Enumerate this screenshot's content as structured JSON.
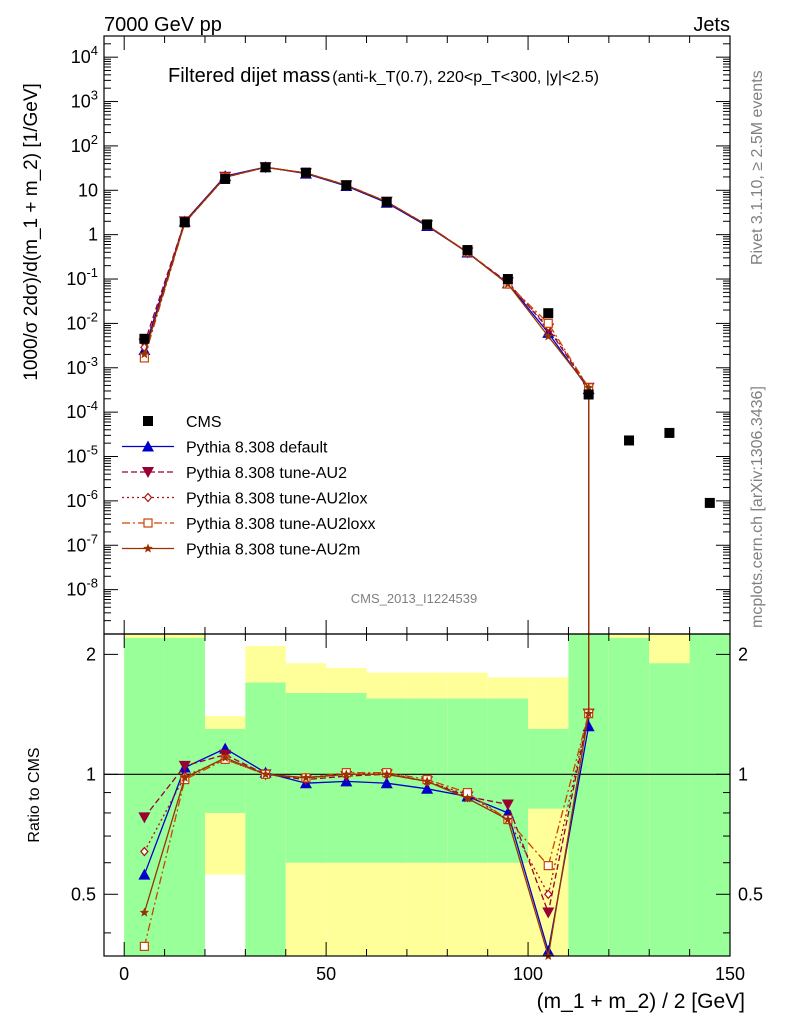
{
  "header": {
    "left": "7000 GeV pp",
    "right": "Jets"
  },
  "side_labels": {
    "rivet": "Rivet 3.1.10, ≥ 2.5M events",
    "mcplots": "mcplots.cern.ch [arXiv:1306.3436]"
  },
  "watermark": "CMS_2013_I1224539",
  "colors": {
    "cms": "#000000",
    "default": "#0000cc",
    "au2": "#990033",
    "au2lox": "#aa1111",
    "au2loxx": "#cc4400",
    "au2m": "#993300",
    "band_inner": "#99ff99",
    "band_outer": "#ffff99"
  },
  "chart_data": {
    "type": "line",
    "title": "Filtered dijet mass",
    "title_suffix": "(anti-k_T(0.7), 220<p_T<300, |y|<2.5)",
    "xlabel": "(m_1 + m_2) / 2 [GeV]",
    "ylabel": "1000/σ 2dσ)/d(m_1 + m_2) [1/GeV]",
    "ratio_ylabel": "Ratio to CMS",
    "xlim": [
      -5,
      150
    ],
    "ylim": [
      1e-09,
      30000
    ],
    "yscale": "log",
    "ratio_ylim": [
      0.35,
      2.25
    ],
    "x_ticks": [
      0,
      50,
      100,
      150
    ],
    "y_ticks": [
      "10^{-8}",
      "10^{-7}",
      "10^{-6}",
      "10^{-5}",
      "10^{-4}",
      "10^{-3}",
      "10^{-2}",
      "10^{-1}",
      "1",
      "10",
      "10^{2}",
      "10^{3}",
      "10^{4}"
    ],
    "ratio_ticks": [
      "0.5",
      "1",
      "2"
    ],
    "legend_position": "lower-left",
    "x": [
      5,
      15,
      25,
      35,
      45,
      55,
      65,
      75,
      85,
      95,
      105,
      115,
      125,
      135,
      145
    ],
    "cms": [
      0.0045,
      1.9,
      18,
      33,
      25,
      13,
      5.5,
      1.7,
      0.45,
      0.1,
      0.017,
      0.00025,
      2.3e-05,
      3.4e-05,
      9e-07
    ],
    "band_inner": [
      [
        0.35,
        2.2
      ],
      [
        0.35,
        2.2
      ],
      [
        0.8,
        1.3
      ],
      [
        0.35,
        1.7
      ],
      [
        0.6,
        1.6
      ],
      [
        0.6,
        1.6
      ],
      [
        0.6,
        1.55
      ],
      [
        0.6,
        1.55
      ],
      [
        0.6,
        1.55
      ],
      [
        0.6,
        1.55
      ],
      [
        0.82,
        1.3
      ],
      [
        0.35,
        2.3
      ],
      [
        0.35,
        2.2
      ],
      [
        0.35,
        1.9
      ],
      [
        0.35,
        2.3
      ]
    ],
    "band_outer": [
      [
        0.35,
        2.3
      ],
      [
        0.35,
        2.3
      ],
      [
        0.56,
        1.4
      ],
      [
        0.35,
        2.1
      ],
      [
        0.35,
        1.9
      ],
      [
        0.35,
        1.85
      ],
      [
        0.35,
        1.8
      ],
      [
        0.35,
        1.8
      ],
      [
        0.35,
        1.8
      ],
      [
        0.35,
        1.75
      ],
      [
        0.35,
        1.75
      ],
      [
        0.35,
        2.3
      ],
      [
        0.37,
        2.3
      ],
      [
        0.38,
        2.3
      ],
      [
        0.35,
        2.3
      ]
    ],
    "series": [
      {
        "key": "cms",
        "name": "CMS",
        "marker": "square",
        "dash": ""
      },
      {
        "key": "default",
        "name": "Pythia 8.308 default",
        "marker": "triangle-up",
        "dash": "",
        "ratio": [
          0.56,
          1.04,
          1.16,
          1.01,
          0.95,
          0.96,
          0.95,
          0.92,
          0.88,
          0.8,
          0.36,
          1.32
        ]
      },
      {
        "key": "au2",
        "name": "Pythia 8.308 tune-AU2",
        "marker": "triangle-down",
        "dash": "6,3",
        "ratio": [
          0.78,
          1.05,
          1.12,
          1.0,
          0.97,
          0.99,
          1.0,
          0.96,
          0.88,
          0.84,
          0.45,
          1.42
        ]
      },
      {
        "key": "au2lox",
        "name": "Pythia 8.308 tune-AU2lox",
        "marker": "diamond",
        "dash": "2,3",
        "ratio": [
          0.64,
          0.99,
          1.09,
          1.0,
          0.98,
          1.0,
          1.01,
          0.96,
          0.89,
          0.77,
          0.5,
          1.42
        ]
      },
      {
        "key": "au2loxx",
        "name": "Pythia 8.308 tune-AU2loxx",
        "marker": "square-open",
        "dash": "8,3,2,3",
        "ratio": [
          0.37,
          0.97,
          1.09,
          1.0,
          0.98,
          1.01,
          1.01,
          0.97,
          0.9,
          0.77,
          0.59,
          1.42
        ]
      },
      {
        "key": "au2m",
        "name": "Pythia 8.308 tune-AU2m",
        "marker": "star",
        "dash": "",
        "ratio": [
          0.45,
          0.98,
          1.1,
          1.0,
          0.98,
          1.0,
          1.0,
          0.96,
          0.87,
          0.77,
          0.3,
          1.42
        ]
      }
    ]
  }
}
